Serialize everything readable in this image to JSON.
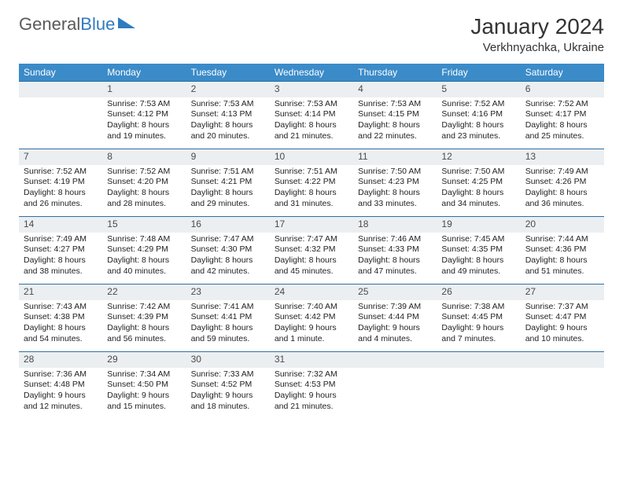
{
  "brand": {
    "name_part1": "General",
    "name_part2": "Blue"
  },
  "title": "January 2024",
  "location": "Verkhnyachka, Ukraine",
  "day_headers": [
    "Sunday",
    "Monday",
    "Tuesday",
    "Wednesday",
    "Thursday",
    "Friday",
    "Saturday"
  ],
  "colors": {
    "header_bg": "#3b8bc9",
    "header_text": "#ffffff",
    "daynum_bg": "#eceff1",
    "row_border": "#2f6fa3",
    "brand_gray": "#5a5a5a",
    "brand_blue": "#2f7bbf"
  },
  "weeks": [
    [
      null,
      {
        "n": "1",
        "sr": "7:53 AM",
        "ss": "4:12 PM",
        "dl": "8 hours and 19 minutes."
      },
      {
        "n": "2",
        "sr": "7:53 AM",
        "ss": "4:13 PM",
        "dl": "8 hours and 20 minutes."
      },
      {
        "n": "3",
        "sr": "7:53 AM",
        "ss": "4:14 PM",
        "dl": "8 hours and 21 minutes."
      },
      {
        "n": "4",
        "sr": "7:53 AM",
        "ss": "4:15 PM",
        "dl": "8 hours and 22 minutes."
      },
      {
        "n": "5",
        "sr": "7:52 AM",
        "ss": "4:16 PM",
        "dl": "8 hours and 23 minutes."
      },
      {
        "n": "6",
        "sr": "7:52 AM",
        "ss": "4:17 PM",
        "dl": "8 hours and 25 minutes."
      }
    ],
    [
      {
        "n": "7",
        "sr": "7:52 AM",
        "ss": "4:19 PM",
        "dl": "8 hours and 26 minutes."
      },
      {
        "n": "8",
        "sr": "7:52 AM",
        "ss": "4:20 PM",
        "dl": "8 hours and 28 minutes."
      },
      {
        "n": "9",
        "sr": "7:51 AM",
        "ss": "4:21 PM",
        "dl": "8 hours and 29 minutes."
      },
      {
        "n": "10",
        "sr": "7:51 AM",
        "ss": "4:22 PM",
        "dl": "8 hours and 31 minutes."
      },
      {
        "n": "11",
        "sr": "7:50 AM",
        "ss": "4:23 PM",
        "dl": "8 hours and 33 minutes."
      },
      {
        "n": "12",
        "sr": "7:50 AM",
        "ss": "4:25 PM",
        "dl": "8 hours and 34 minutes."
      },
      {
        "n": "13",
        "sr": "7:49 AM",
        "ss": "4:26 PM",
        "dl": "8 hours and 36 minutes."
      }
    ],
    [
      {
        "n": "14",
        "sr": "7:49 AM",
        "ss": "4:27 PM",
        "dl": "8 hours and 38 minutes."
      },
      {
        "n": "15",
        "sr": "7:48 AM",
        "ss": "4:29 PM",
        "dl": "8 hours and 40 minutes."
      },
      {
        "n": "16",
        "sr": "7:47 AM",
        "ss": "4:30 PM",
        "dl": "8 hours and 42 minutes."
      },
      {
        "n": "17",
        "sr": "7:47 AM",
        "ss": "4:32 PM",
        "dl": "8 hours and 45 minutes."
      },
      {
        "n": "18",
        "sr": "7:46 AM",
        "ss": "4:33 PM",
        "dl": "8 hours and 47 minutes."
      },
      {
        "n": "19",
        "sr": "7:45 AM",
        "ss": "4:35 PM",
        "dl": "8 hours and 49 minutes."
      },
      {
        "n": "20",
        "sr": "7:44 AM",
        "ss": "4:36 PM",
        "dl": "8 hours and 51 minutes."
      }
    ],
    [
      {
        "n": "21",
        "sr": "7:43 AM",
        "ss": "4:38 PM",
        "dl": "8 hours and 54 minutes."
      },
      {
        "n": "22",
        "sr": "7:42 AM",
        "ss": "4:39 PM",
        "dl": "8 hours and 56 minutes."
      },
      {
        "n": "23",
        "sr": "7:41 AM",
        "ss": "4:41 PM",
        "dl": "8 hours and 59 minutes."
      },
      {
        "n": "24",
        "sr": "7:40 AM",
        "ss": "4:42 PM",
        "dl": "9 hours and 1 minute."
      },
      {
        "n": "25",
        "sr": "7:39 AM",
        "ss": "4:44 PM",
        "dl": "9 hours and 4 minutes."
      },
      {
        "n": "26",
        "sr": "7:38 AM",
        "ss": "4:45 PM",
        "dl": "9 hours and 7 minutes."
      },
      {
        "n": "27",
        "sr": "7:37 AM",
        "ss": "4:47 PM",
        "dl": "9 hours and 10 minutes."
      }
    ],
    [
      {
        "n": "28",
        "sr": "7:36 AM",
        "ss": "4:48 PM",
        "dl": "9 hours and 12 minutes."
      },
      {
        "n": "29",
        "sr": "7:34 AM",
        "ss": "4:50 PM",
        "dl": "9 hours and 15 minutes."
      },
      {
        "n": "30",
        "sr": "7:33 AM",
        "ss": "4:52 PM",
        "dl": "9 hours and 18 minutes."
      },
      {
        "n": "31",
        "sr": "7:32 AM",
        "ss": "4:53 PM",
        "dl": "9 hours and 21 minutes."
      },
      null,
      null,
      null
    ]
  ],
  "labels": {
    "sunrise": "Sunrise:",
    "sunset": "Sunset:",
    "daylight": "Daylight:"
  }
}
